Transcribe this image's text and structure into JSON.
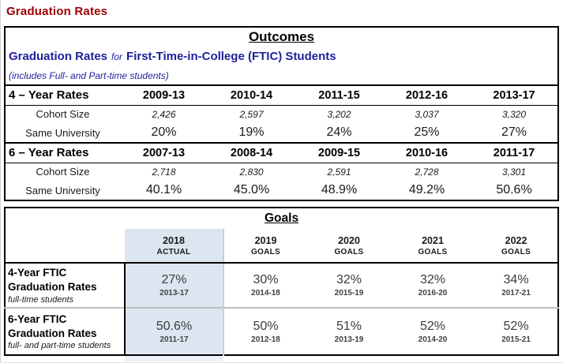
{
  "title": "Graduation Rates",
  "colors": {
    "title_red": "#A00000",
    "heading_blue": "#1F1F9C",
    "highlight_blue": "#DCE6F1"
  },
  "outcomes": {
    "heading": "Outcomes",
    "subtitle": {
      "prefix": "Graduation Rates",
      "connector": "for",
      "subject": "First-Time-in-College (FTIC) Students"
    },
    "note": "(includes Full- and Part-time students)",
    "row_labels": {
      "cohort": "Cohort Size",
      "same_university": "Same University"
    },
    "sections": [
      {
        "label": "4 – Year Rates",
        "years": [
          "2009-13",
          "2010-14",
          "2011-15",
          "2012-16",
          "2013-17"
        ],
        "cohorts": [
          "2,426",
          "2,597",
          "3,202",
          "3,037",
          "3,320"
        ],
        "rates": [
          "20%",
          "19%",
          "24%",
          "25%",
          "27%"
        ]
      },
      {
        "label": "6 – Year Rates",
        "years": [
          "2007-13",
          "2008-14",
          "2009-15",
          "2010-16",
          "2011-17"
        ],
        "cohorts": [
          "2,718",
          "2,830",
          "2,591",
          "2,728",
          "3,301"
        ],
        "rates": [
          "40.1%",
          "45.0%",
          "48.9%",
          "49.2%",
          "50.6%"
        ]
      }
    ]
  },
  "goals": {
    "heading": "Goals",
    "columns": [
      {
        "year": "2018",
        "type": "ACTUAL",
        "highlight": true
      },
      {
        "year": "2019",
        "type": "GOALS",
        "highlight": false
      },
      {
        "year": "2020",
        "type": "GOALS",
        "highlight": false
      },
      {
        "year": "2021",
        "type": "GOALS",
        "highlight": false
      },
      {
        "year": "2022",
        "type": "GOALS",
        "highlight": false
      }
    ],
    "rows": [
      {
        "label": "4-Year FTIC Graduation Rates",
        "sublabel": "full-time students",
        "cells": [
          {
            "value": "27%",
            "period": "2013-17"
          },
          {
            "value": "30%",
            "period": "2014-18"
          },
          {
            "value": "32%",
            "period": "2015-19"
          },
          {
            "value": "32%",
            "period": "2016-20"
          },
          {
            "value": "34%",
            "period": "2017-21"
          }
        ]
      },
      {
        "label": "6-Year FTIC Graduation Rates",
        "sublabel": "full- and part-time students",
        "cells": [
          {
            "value": "50.6%",
            "period": "2011-17"
          },
          {
            "value": "50%",
            "period": "2012-18"
          },
          {
            "value": "51%",
            "period": "2013-19"
          },
          {
            "value": "52%",
            "period": "2014-20"
          },
          {
            "value": "52%",
            "period": "2015-21"
          }
        ]
      }
    ]
  }
}
